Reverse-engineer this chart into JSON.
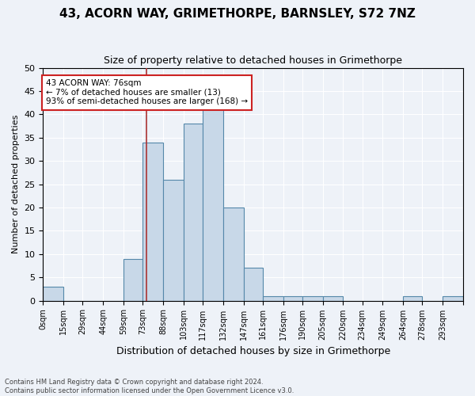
{
  "title1": "43, ACORN WAY, GRIMETHORPE, BARNSLEY, S72 7NZ",
  "title2": "Size of property relative to detached houses in Grimethorpe",
  "xlabel": "Distribution of detached houses by size in Grimethorpe",
  "ylabel": "Number of detached properties",
  "footer": "Contains HM Land Registry data © Crown copyright and database right 2024.\nContains public sector information licensed under the Open Government Licence v3.0.",
  "bin_edges": [
    0,
    15,
    29,
    44,
    59,
    73,
    88,
    103,
    117,
    132,
    147,
    161,
    176,
    190,
    205,
    220,
    234,
    249,
    264,
    278,
    293,
    308
  ],
  "bin_labels": [
    "0sqm",
    "15sqm",
    "29sqm",
    "44sqm",
    "59sqm",
    "73sqm",
    "88sqm",
    "103sqm",
    "117sqm",
    "132sqm",
    "147sqm",
    "161sqm",
    "176sqm",
    "190sqm",
    "205sqm",
    "220sqm",
    "234sqm",
    "249sqm",
    "264sqm",
    "278sqm",
    "293sqm"
  ],
  "counts": [
    3,
    0,
    0,
    0,
    9,
    34,
    26,
    38,
    41,
    20,
    7,
    1,
    1,
    1,
    1,
    0,
    0,
    0,
    1,
    0,
    1
  ],
  "bar_color": "#c8d8e8",
  "bar_edge_color": "#5588aa",
  "vline_x": 76,
  "vline_color": "#aa3333",
  "annotation_text": "43 ACORN WAY: 76sqm\n← 7% of detached houses are smaller (13)\n93% of semi-detached houses are larger (168) →",
  "annotation_box_color": "white",
  "annotation_box_edge": "#cc2222",
  "ylim": [
    0,
    50
  ],
  "yticks": [
    0,
    5,
    10,
    15,
    20,
    25,
    30,
    35,
    40,
    45,
    50
  ],
  "background_color": "#eef2f8",
  "grid_color": "white"
}
